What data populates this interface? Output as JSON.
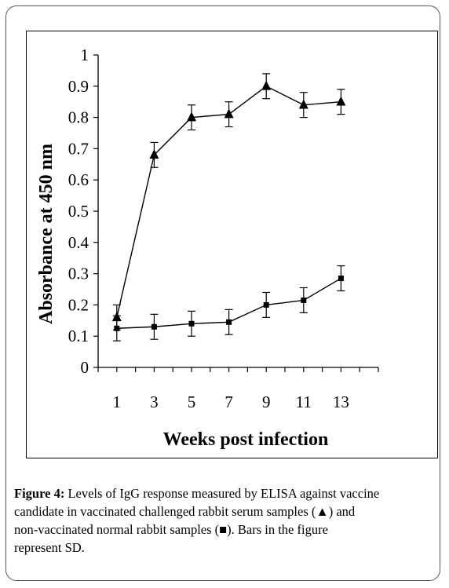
{
  "chart_data": {
    "type": "line",
    "title": "",
    "xlabel": "Weeks post infection",
    "ylabel": "Absorbance at 450 nm",
    "x": [
      1,
      3,
      5,
      7,
      9,
      11,
      13
    ],
    "x_tick_labels": [
      "1",
      "3",
      "5",
      "7",
      "9",
      "11",
      "13"
    ],
    "y_tick_labels": [
      "0",
      "0.1",
      "0.2",
      "0.3",
      "0.4",
      "0.5",
      "0.6",
      "0.7",
      "0.8",
      "0.9",
      "1"
    ],
    "ylim": [
      0,
      1
    ],
    "grid": false,
    "series": [
      {
        "marker": "triangle",
        "values": [
          0.16,
          0.68,
          0.8,
          0.81,
          0.9,
          0.84,
          0.85
        ],
        "error": [
          0.04,
          0.04,
          0.04,
          0.04,
          0.04,
          0.04,
          0.04
        ]
      },
      {
        "marker": "square",
        "values": [
          0.125,
          0.13,
          0.14,
          0.145,
          0.2,
          0.215,
          0.285
        ],
        "error": [
          0.04,
          0.04,
          0.04,
          0.04,
          0.04,
          0.04,
          0.04
        ]
      }
    ]
  },
  "caption": {
    "label": "Figure 4:",
    "line1": "Levels of IgG response measured by ELISA against vaccine",
    "line2a": "candidate in vaccinated challenged rabbit serum samples",
    "marker1": "(▲)",
    "line2b": "and",
    "line3a": "non-vaccinated normal rabbit samples",
    "marker2": "(■).",
    "line3b": "Bars in the figure",
    "line4": "represent SD."
  }
}
